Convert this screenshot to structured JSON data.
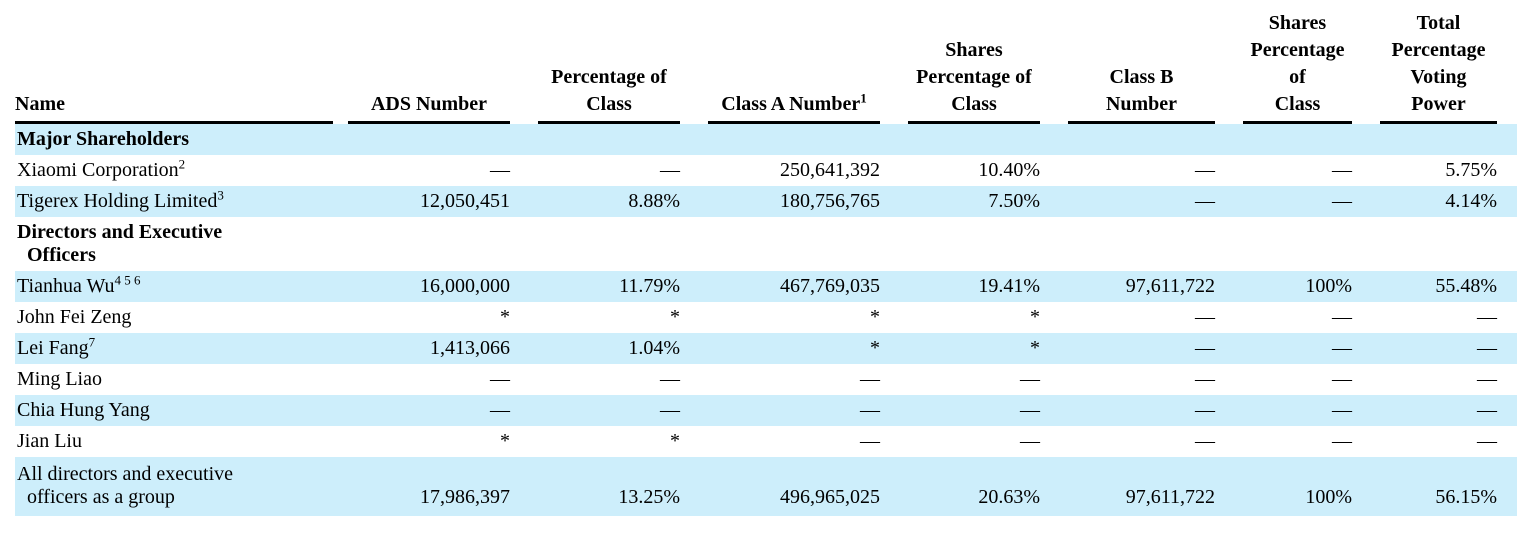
{
  "page": {
    "background_color": "#ffffff",
    "row_highlight_color": "#cdeefb"
  },
  "table": {
    "header": [
      {
        "lines": [
          "Name"
        ],
        "sup": null
      },
      {
        "lines": [
          "ADS Number"
        ],
        "sup": null
      },
      {
        "lines": [
          "Percentage of",
          "Class"
        ],
        "sup": null
      },
      {
        "lines": [
          "Class A Number"
        ],
        "sup": "1"
      },
      {
        "lines": [
          "Shares",
          "Percentage of",
          "Class"
        ],
        "sup": null
      },
      {
        "lines": [
          "Class B",
          "Number"
        ],
        "sup": null
      },
      {
        "lines": [
          "Shares",
          "Percentage of",
          "Class"
        ],
        "sup": null
      },
      {
        "lines": [
          "Total",
          "Percentage",
          "Voting",
          "Power"
        ],
        "sup": null
      }
    ],
    "rows": [
      {
        "kind": "section",
        "name_lines": [
          "Major Shareholders"
        ],
        "sup": null,
        "shaded": true,
        "tall": false,
        "cells": []
      },
      {
        "kind": "data",
        "name_lines": [
          "Xiaomi Corporation"
        ],
        "sup": "2",
        "shaded": false,
        "tall": false,
        "cells": [
          "—",
          "—",
          "250,641,392",
          "10.40%",
          "—",
          "—",
          "5.75%"
        ]
      },
      {
        "kind": "data",
        "name_lines": [
          "Tigerex Holding Limited"
        ],
        "sup": "3",
        "shaded": true,
        "tall": false,
        "cells": [
          "12,050,451",
          "8.88%",
          "180,756,765",
          "7.50%",
          "—",
          "—",
          "4.14%"
        ]
      },
      {
        "kind": "section",
        "name_lines": [
          "Directors and Executive",
          "Officers"
        ],
        "sup": null,
        "shaded": false,
        "tall": false,
        "cells": []
      },
      {
        "kind": "data",
        "name_lines": [
          "Tianhua Wu"
        ],
        "sup": "4 5 6",
        "shaded": true,
        "tall": false,
        "cells": [
          "16,000,000",
          "11.79%",
          "467,769,035",
          "19.41%",
          "97,611,722",
          "100%",
          "55.48%"
        ]
      },
      {
        "kind": "data",
        "name_lines": [
          "John Fei Zeng"
        ],
        "sup": null,
        "shaded": false,
        "tall": false,
        "cells": [
          "*",
          "*",
          "*",
          "*",
          "—",
          "—",
          "—"
        ]
      },
      {
        "kind": "data",
        "name_lines": [
          "Lei Fang"
        ],
        "sup": "7",
        "shaded": true,
        "tall": false,
        "cells": [
          "1,413,066",
          "1.04%",
          "*",
          "*",
          "—",
          "—",
          "—"
        ]
      },
      {
        "kind": "data",
        "name_lines": [
          "Ming Liao"
        ],
        "sup": null,
        "shaded": false,
        "tall": false,
        "cells": [
          "—",
          "—",
          "—",
          "—",
          "—",
          "—",
          "—"
        ]
      },
      {
        "kind": "data",
        "name_lines": [
          "Chia Hung Yang"
        ],
        "sup": null,
        "shaded": true,
        "tall": false,
        "cells": [
          "—",
          "—",
          "—",
          "—",
          "—",
          "—",
          "—"
        ]
      },
      {
        "kind": "data",
        "name_lines": [
          "Jian Liu"
        ],
        "sup": null,
        "shaded": false,
        "tall": false,
        "cells": [
          "*",
          "*",
          "—",
          "—",
          "—",
          "—",
          "—"
        ]
      },
      {
        "kind": "data",
        "name_lines": [
          "All directors and executive",
          "officers as a group"
        ],
        "sup": null,
        "shaded": true,
        "tall": true,
        "cells": [
          "17,986,397",
          "13.25%",
          "496,965,025",
          "20.63%",
          "97,611,722",
          "100%",
          "56.15%"
        ]
      }
    ]
  }
}
